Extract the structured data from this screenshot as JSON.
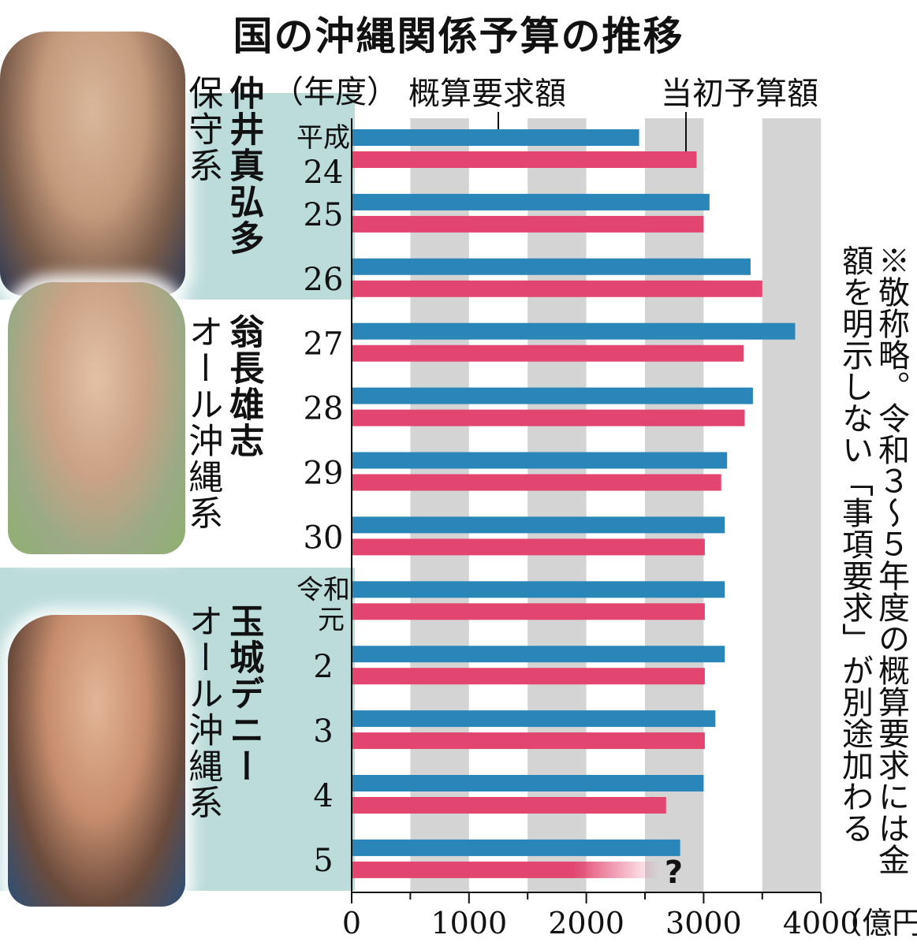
{
  "title": "国の沖縄関係予算の推移",
  "year_header": "（年度）",
  "governors": [
    {
      "name": "仲井真弘多",
      "faction": "保守系"
    },
    {
      "name": "翁長雄志",
      "faction": "オール沖縄系"
    },
    {
      "name": "玉城デニー",
      "faction": "オール沖縄系"
    }
  ],
  "note": "※敬称略。令和３～５年度の概算要求には金額を明示しない「事項要求」が別途加わる",
  "colors": {
    "request": "#2a86b8",
    "budget": "#e24670",
    "grid": "#d4d4d4",
    "band": "#bcdcda"
  },
  "chart_data": {
    "type": "bar",
    "orientation": "horizontal",
    "categories": [
      "24",
      "25",
      "26",
      "27",
      "28",
      "29",
      "30",
      "元",
      "2",
      "3",
      "4",
      "5"
    ],
    "era_labels": [
      {
        "at": "24",
        "text": "平成"
      },
      {
        "at": "元",
        "text": "令和"
      }
    ],
    "series": [
      {
        "name": "概算要求額",
        "values": [
          2450,
          3050,
          3400,
          3780,
          3420,
          3200,
          3180,
          3180,
          3180,
          3100,
          3000,
          2800
        ]
      },
      {
        "name": "当初予算額",
        "values": [
          2940,
          3000,
          3500,
          3340,
          3350,
          3150,
          3010,
          3010,
          3010,
          3010,
          2680,
          null
        ]
      }
    ],
    "unknown_marker": "?",
    "xlim": [
      0,
      4000
    ],
    "xticks": [
      0,
      1000,
      2000,
      3000,
      4000
    ],
    "xunit": "（億円）",
    "grid": true
  }
}
